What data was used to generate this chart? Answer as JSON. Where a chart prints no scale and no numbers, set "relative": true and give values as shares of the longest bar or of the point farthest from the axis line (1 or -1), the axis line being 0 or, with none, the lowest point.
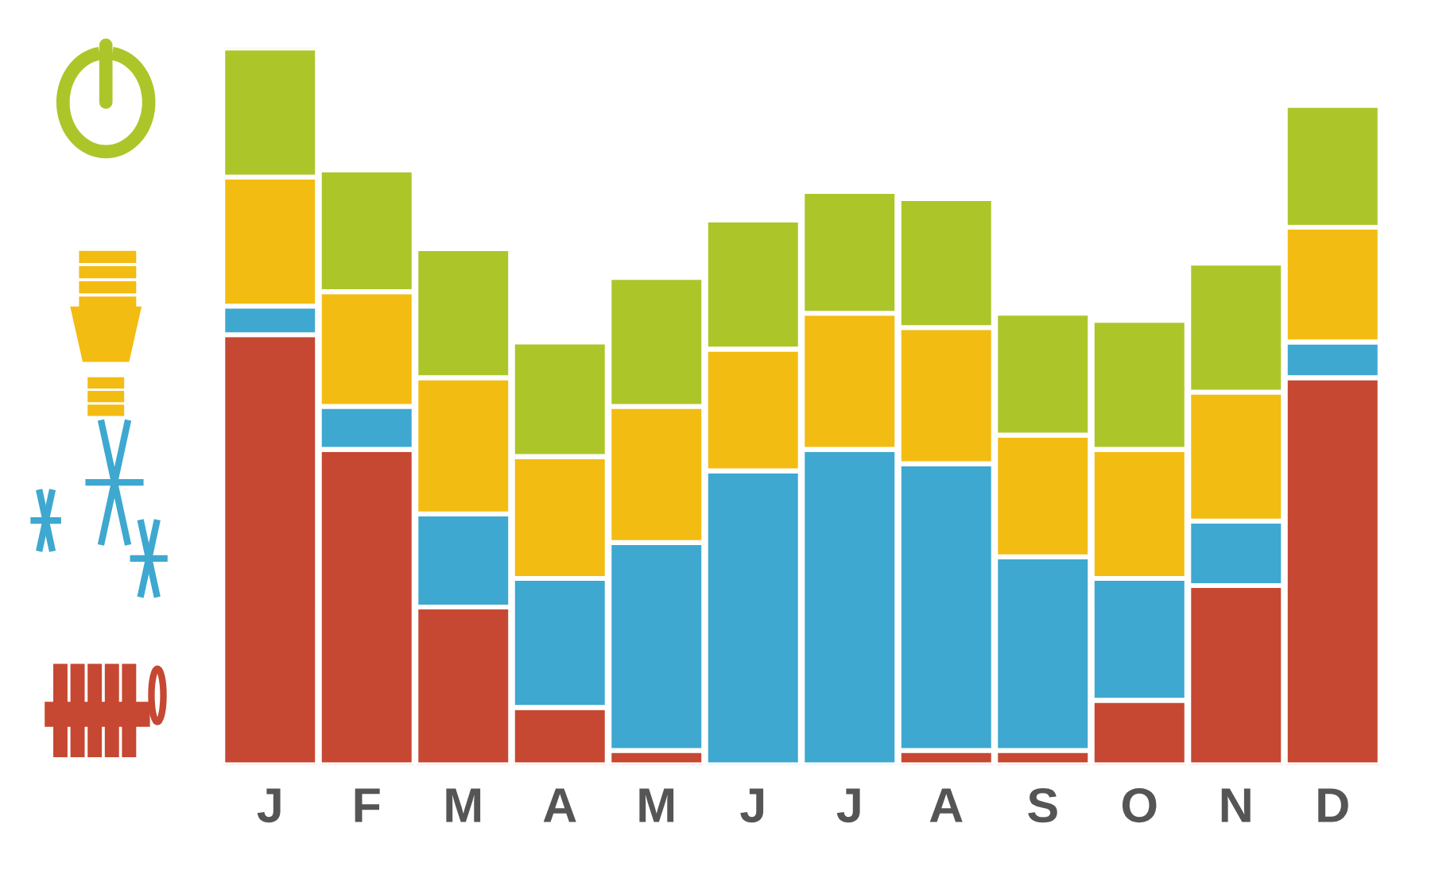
{
  "chart_data": {
    "type": "bar",
    "stacked": true,
    "relative": true,
    "categories": [
      "J",
      "F",
      "M",
      "A",
      "M",
      "J",
      "J",
      "A",
      "S",
      "O",
      "N",
      "D"
    ],
    "series": [
      {
        "color": "#c64832",
        "values": [
          0.6,
          0.44,
          0.22,
          0.08,
          0.02,
          0,
          0,
          0.02,
          0.02,
          0.09,
          0.25,
          0.54
        ]
      },
      {
        "color": "#3ea8d0",
        "values": [
          0.04,
          0.06,
          0.13,
          0.18,
          0.29,
          0.41,
          0.44,
          0.4,
          0.27,
          0.17,
          0.09,
          0.05
        ]
      },
      {
        "color": "#f3bc12",
        "values": [
          0.18,
          0.16,
          0.19,
          0.17,
          0.19,
          0.17,
          0.19,
          0.19,
          0.17,
          0.18,
          0.18,
          0.16
        ]
      },
      {
        "color": "#acc62a",
        "values": [
          0.18,
          0.17,
          0.18,
          0.16,
          0.18,
          0.18,
          0.17,
          0.18,
          0.17,
          0.18,
          0.18,
          0.17
        ]
      }
    ],
    "grid": false,
    "legend": false
  }
}
